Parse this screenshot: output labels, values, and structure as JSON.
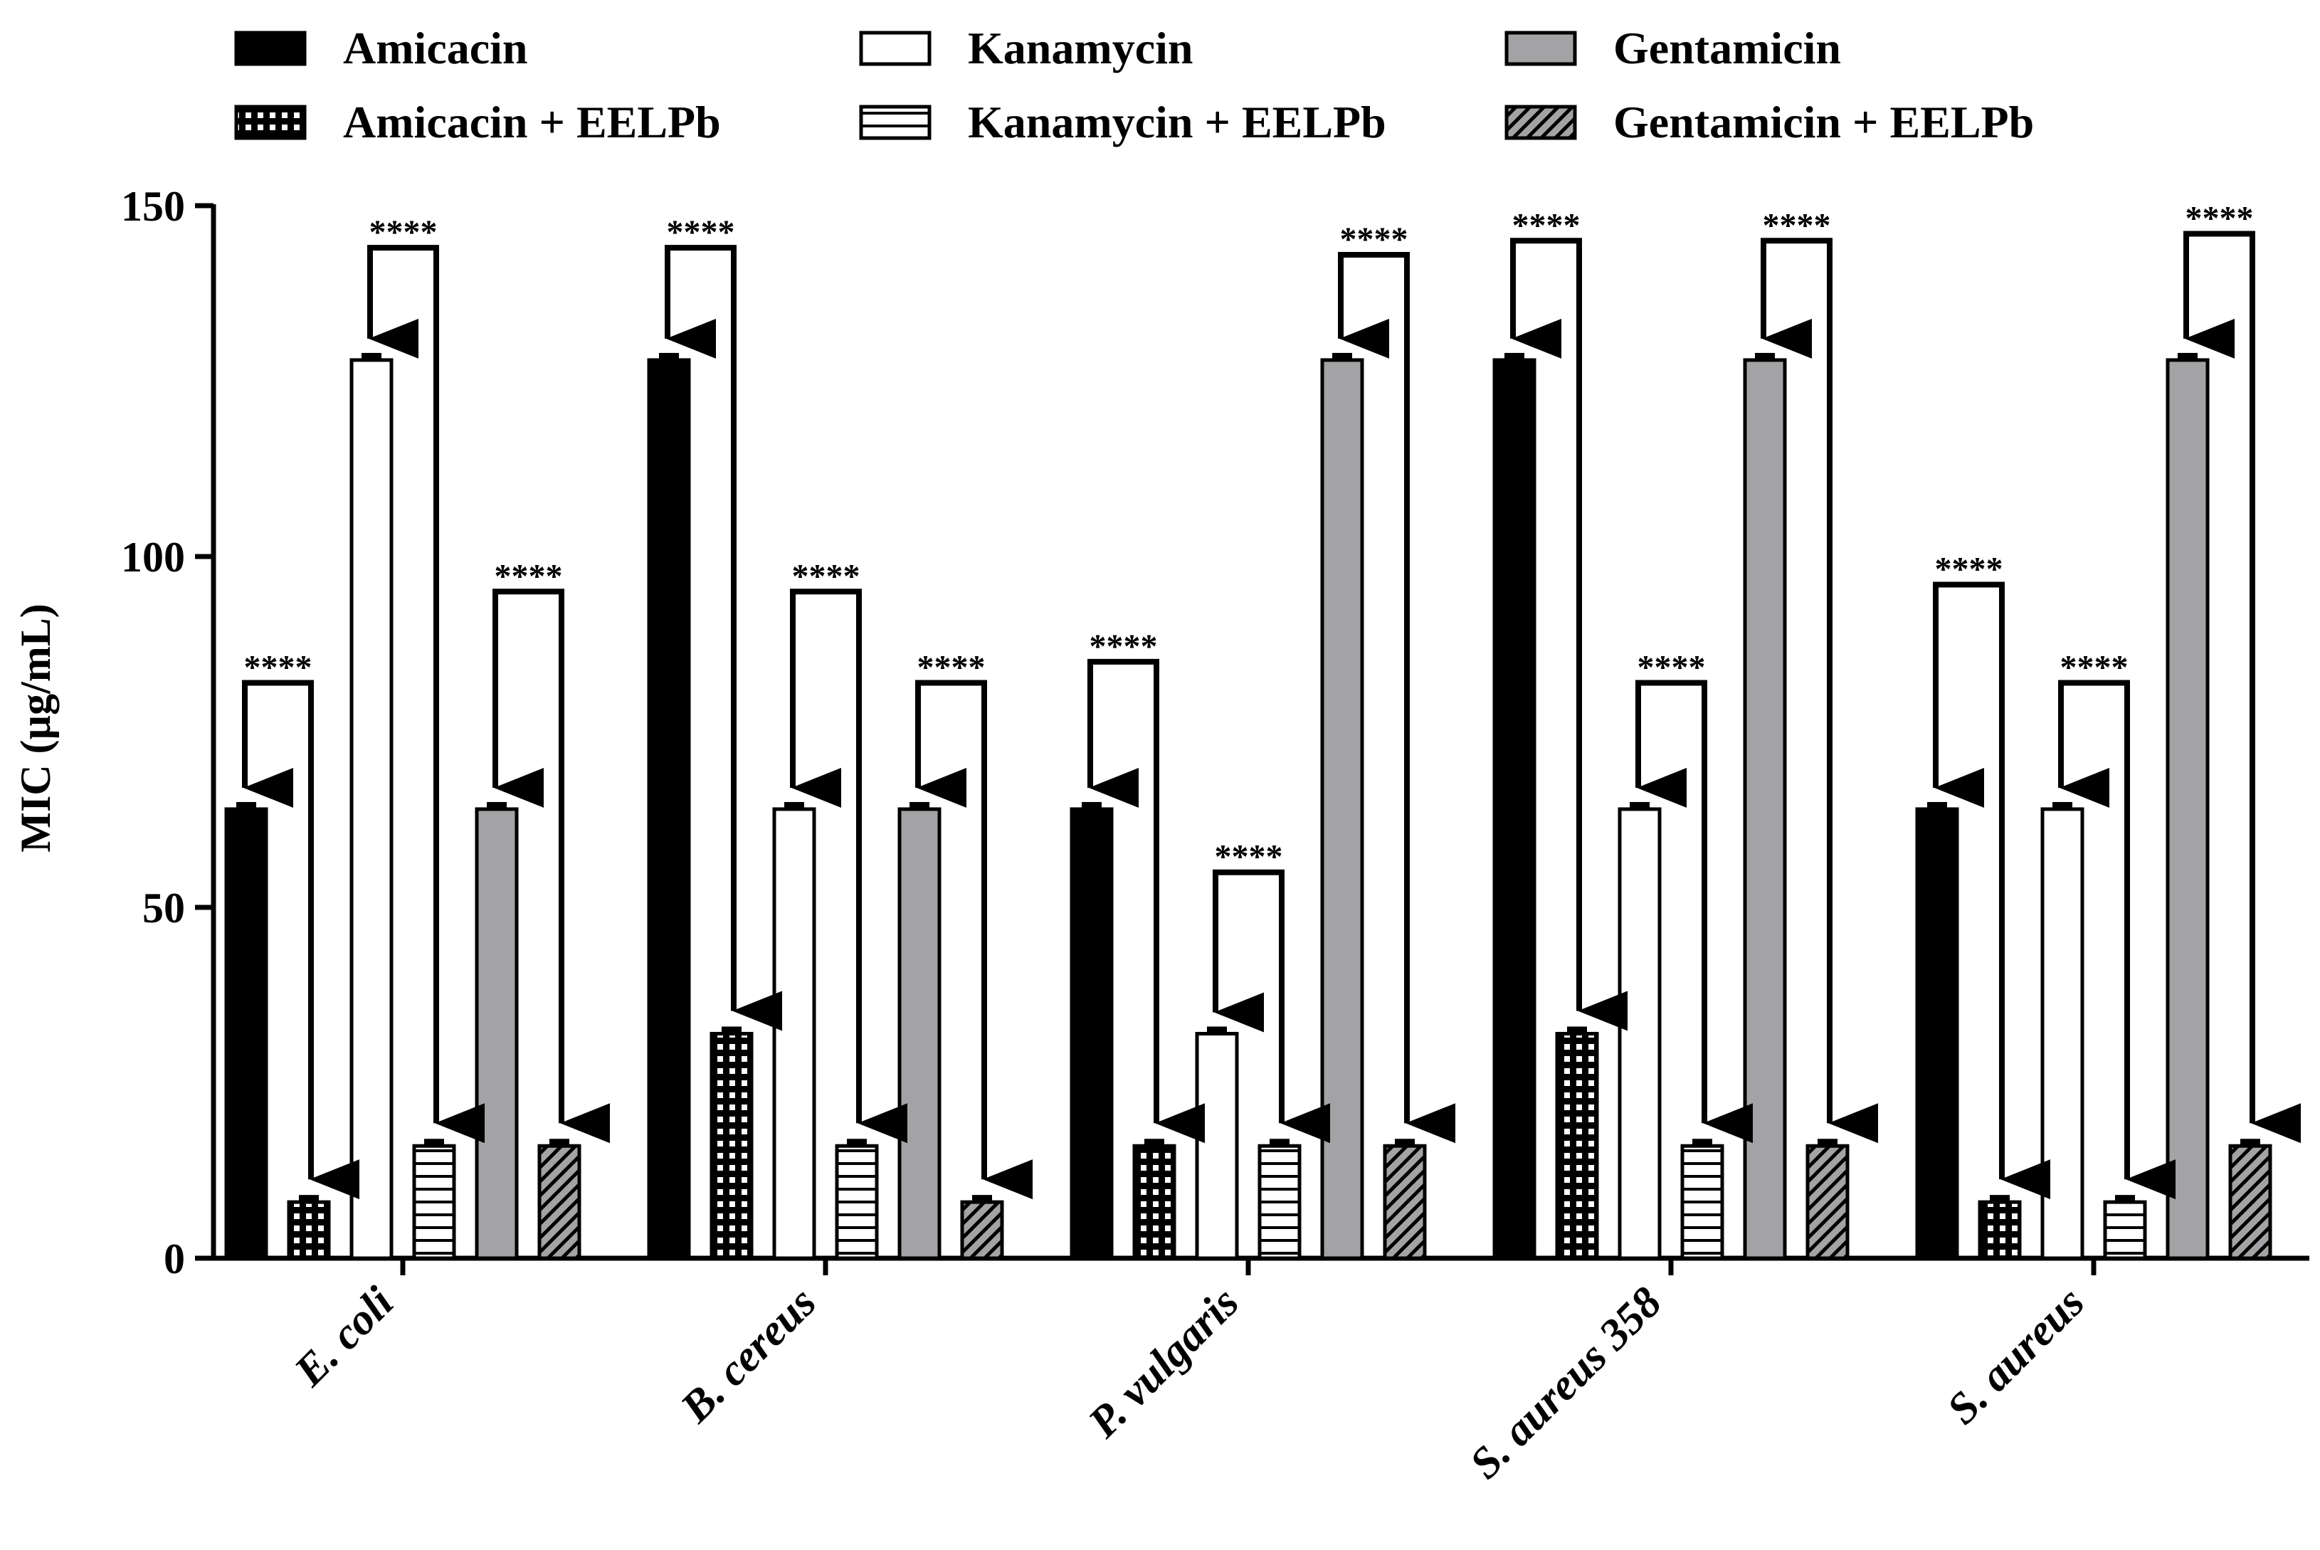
{
  "chart_data": {
    "type": "bar",
    "ylabel": "MIC (µg/mL)",
    "xlabel": "",
    "ylim": [
      0,
      150
    ],
    "yticks": [
      "0",
      "50",
      "100",
      "150"
    ],
    "categories": [
      "E. coli",
      "B. cereus",
      "P. vulgaris",
      "S. aureus 358",
      "S. aureus"
    ],
    "series": [
      {
        "name": "Amicacin",
        "pattern": "solid-black",
        "values": [
          64,
          128,
          64,
          128,
          64
        ]
      },
      {
        "name": "Amicacin + EELPb",
        "pattern": "grid",
        "values": [
          8,
          32,
          16,
          32,
          8
        ]
      },
      {
        "name": "Kanamycin",
        "pattern": "white",
        "values": [
          128,
          64,
          32,
          64,
          64
        ]
      },
      {
        "name": "Kanamycin + EELPb",
        "pattern": "horizontal-lines",
        "values": [
          16,
          16,
          16,
          16,
          8
        ]
      },
      {
        "name": "Gentamicin",
        "pattern": "gray",
        "values": [
          64,
          64,
          128,
          128,
          128
        ]
      },
      {
        "name": "Gentamicin + EELPb",
        "pattern": "diagonal-hatch",
        "values": [
          16,
          8,
          16,
          16,
          16
        ]
      }
    ],
    "legend": {
      "position": "top",
      "order": [
        "Amicacin",
        "Kanamycin",
        "Gentamicin",
        "Amicacin + EELPb",
        "Kanamycin + EELPb",
        "Gentamicin + EELPb"
      ]
    },
    "significance": {
      "label": "****",
      "pairs": [
        {
          "category": 0,
          "from": "Amicacin",
          "to": "Amicacin + EELPb",
          "bracket_value": 82
        },
        {
          "category": 0,
          "from": "Kanamycin",
          "to": "Kanamycin + EELPb",
          "bracket_value": 144
        },
        {
          "category": 0,
          "from": "Gentamicin",
          "to": "Gentamicin + EELPb",
          "bracket_value": 95
        },
        {
          "category": 1,
          "from": "Amicacin",
          "to": "Amicacin + EELPb",
          "bracket_value": 144
        },
        {
          "category": 1,
          "from": "Kanamycin",
          "to": "Kanamycin + EELPb",
          "bracket_value": 95
        },
        {
          "category": 1,
          "from": "Gentamicin",
          "to": "Gentamicin + EELPb",
          "bracket_value": 82
        },
        {
          "category": 2,
          "from": "Amicacin",
          "to": "Amicacin + EELPb",
          "bracket_value": 85
        },
        {
          "category": 2,
          "from": "Kanamycin",
          "to": "Kanamycin + EELPb",
          "bracket_value": 55
        },
        {
          "category": 2,
          "from": "Gentamicin",
          "to": "Gentamicin + EELPb",
          "bracket_value": 143
        },
        {
          "category": 3,
          "from": "Amicacin",
          "to": "Amicacin + EELPb",
          "bracket_value": 145
        },
        {
          "category": 3,
          "from": "Kanamycin",
          "to": "Kanamycin + EELPb",
          "bracket_value": 82
        },
        {
          "category": 3,
          "from": "Gentamicin",
          "to": "Gentamicin + EELPb",
          "bracket_value": 145
        },
        {
          "category": 4,
          "from": "Amicacin",
          "to": "Amicacin + EELPb",
          "bracket_value": 96
        },
        {
          "category": 4,
          "from": "Kanamycin",
          "to": "Kanamycin + EELPb",
          "bracket_value": 82
        },
        {
          "category": 4,
          "from": "Gentamicin",
          "to": "Gentamicin + EELPb",
          "bracket_value": 146
        }
      ]
    },
    "colors": {
      "black": "#000000",
      "gray": "#a3a3a6",
      "white": "#ffffff"
    }
  }
}
